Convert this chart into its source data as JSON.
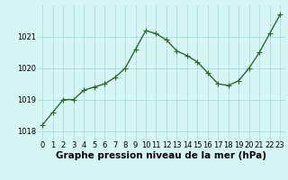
{
  "x": [
    0,
    1,
    2,
    3,
    4,
    5,
    6,
    7,
    8,
    9,
    10,
    11,
    12,
    13,
    14,
    15,
    16,
    17,
    18,
    19,
    20,
    21,
    22,
    23
  ],
  "y": [
    1018.2,
    1018.6,
    1019.0,
    1019.0,
    1019.3,
    1019.4,
    1019.5,
    1019.7,
    1020.0,
    1020.6,
    1021.2,
    1021.1,
    1020.9,
    1020.55,
    1020.4,
    1020.2,
    1019.85,
    1019.5,
    1019.45,
    1019.6,
    1020.0,
    1020.5,
    1021.1,
    1021.7
  ],
  "line_color": "#2d6a2d",
  "marker": "+",
  "marker_size": 4,
  "bg_color": "#d6f5f5",
  "grid_color": "#aadddd",
  "xlabel": "Graphe pression niveau de la mer (hPa)",
  "xlabel_fontsize": 7.5,
  "tick_fontsize": 6,
  "ylim": [
    1017.7,
    1022.0
  ],
  "yticks": [
    1018,
    1019,
    1020,
    1021
  ],
  "xticks": [
    0,
    1,
    2,
    3,
    4,
    5,
    6,
    7,
    8,
    9,
    10,
    11,
    12,
    13,
    14,
    15,
    16,
    17,
    18,
    19,
    20,
    21,
    22,
    23
  ],
  "linewidth": 1.0,
  "marker_color": "#2d6a2d"
}
